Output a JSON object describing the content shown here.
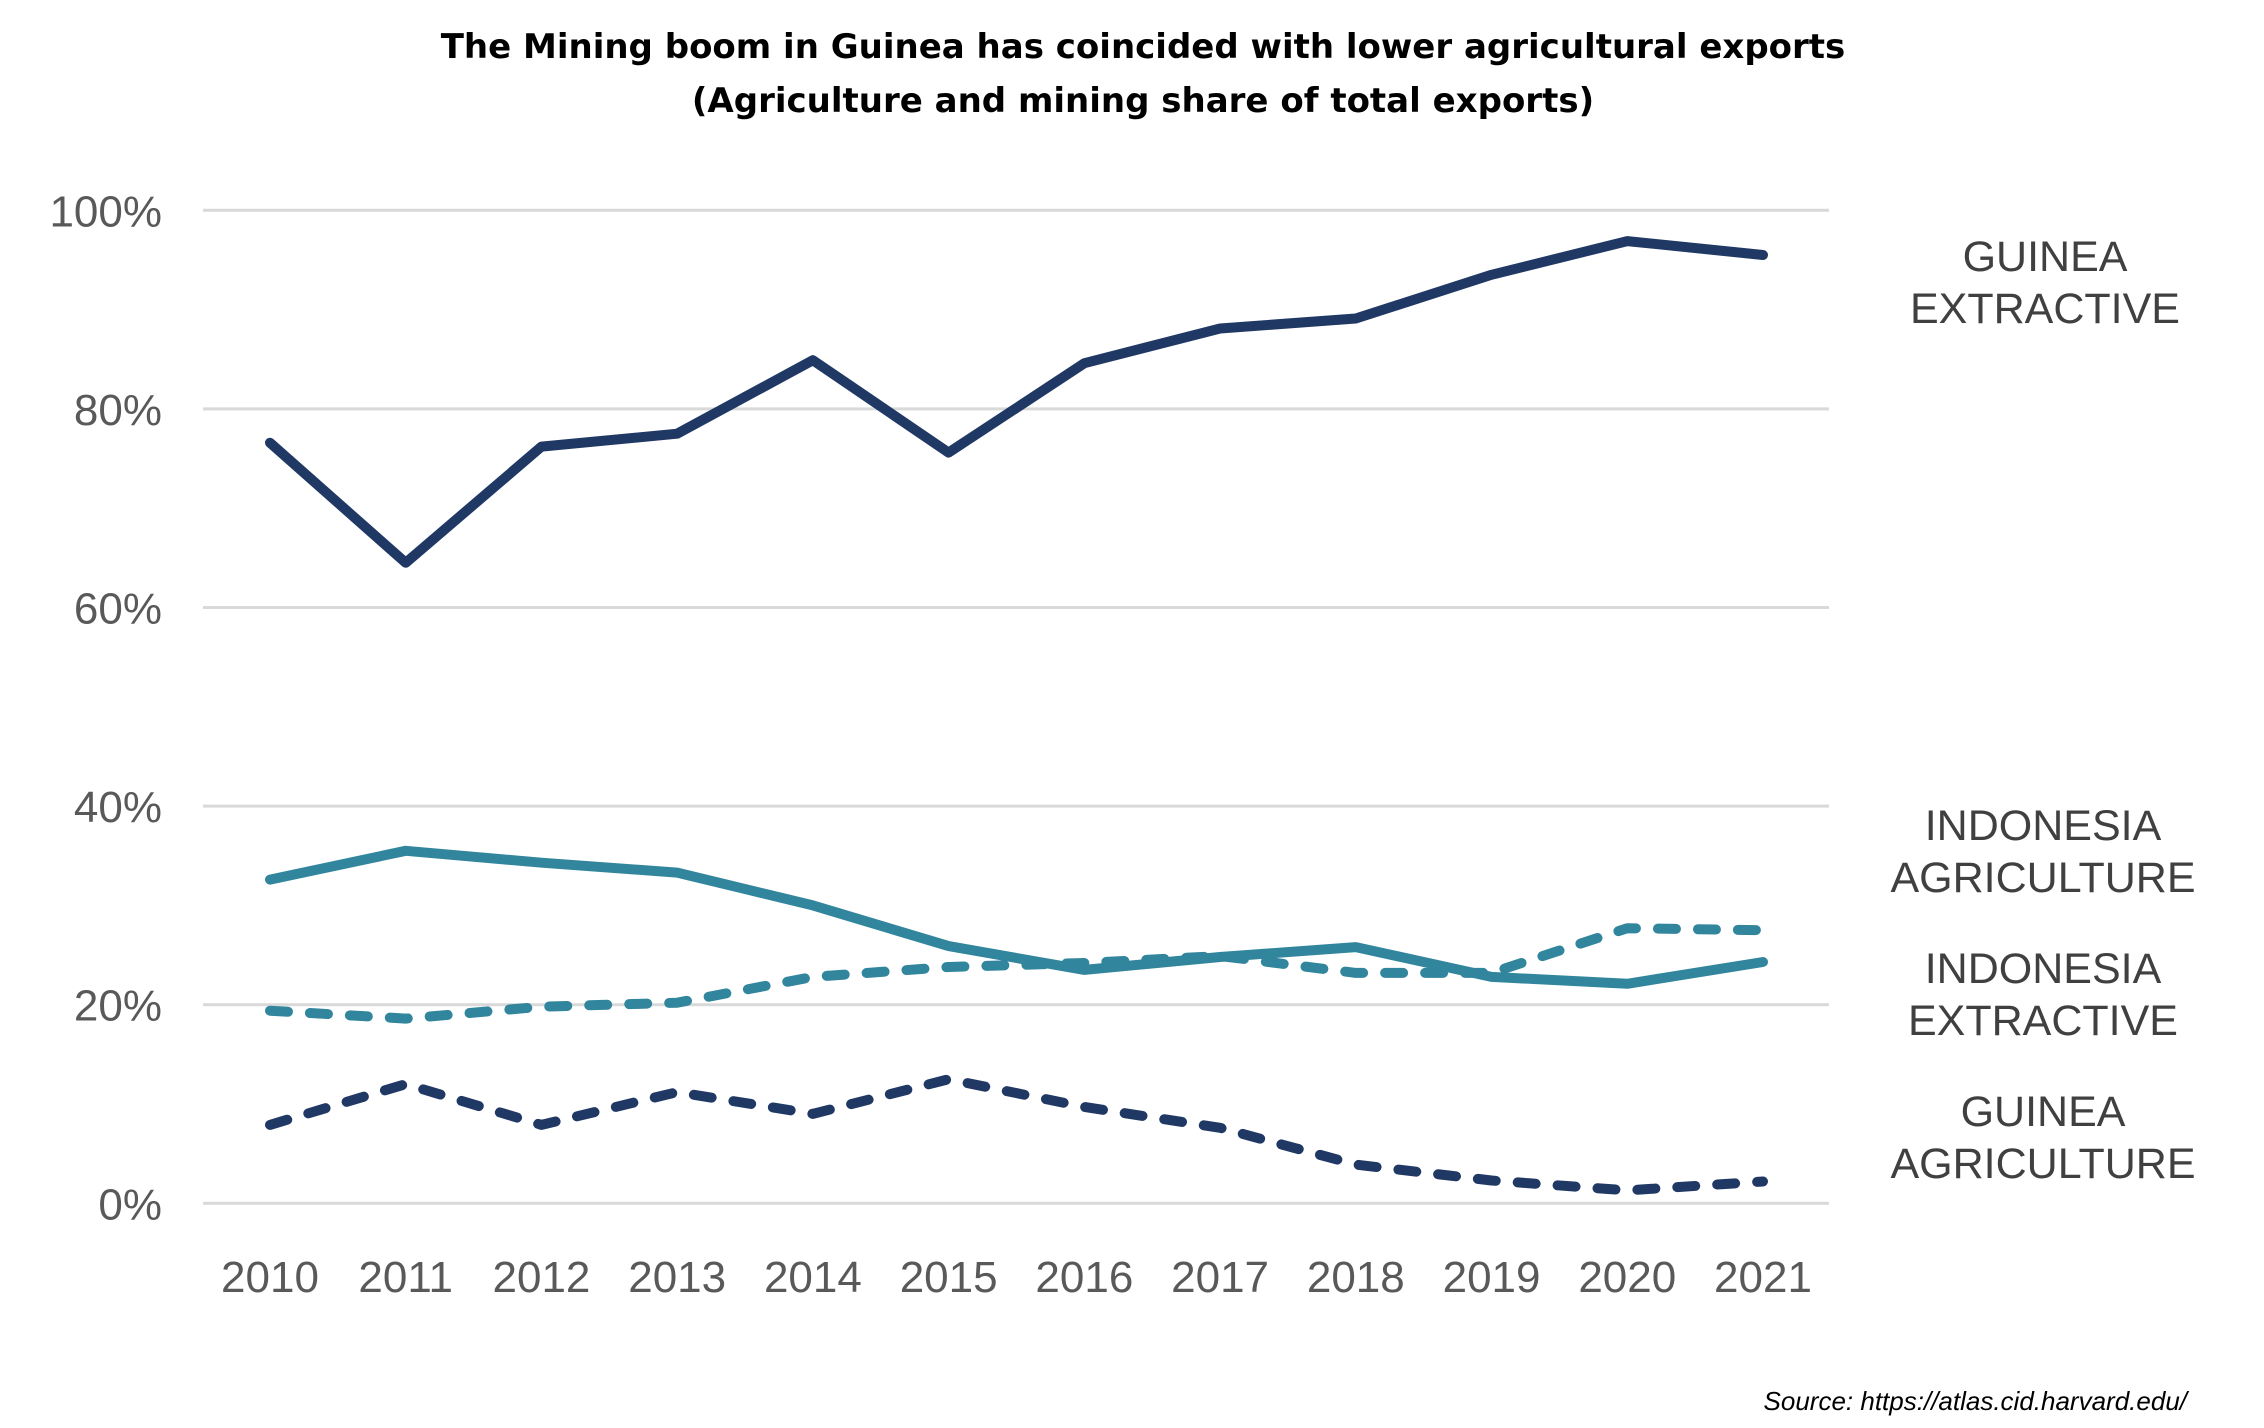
{
  "chart_data": {
    "type": "line",
    "title": "The Mining boom in Guinea has coincided with lower agricultural exports",
    "subtitle": "(Agriculture and mining share of total exports)",
    "xlabel": "",
    "ylabel": "",
    "x": [
      "2010",
      "2011",
      "2012",
      "2013",
      "2014",
      "2015",
      "2016",
      "2017",
      "2018",
      "2019",
      "2020",
      "2021"
    ],
    "ylim": [
      0,
      100
    ],
    "yticks": [
      0,
      20,
      40,
      60,
      80,
      100
    ],
    "ytick_labels": [
      "0%",
      "20%",
      "40%",
      "60%",
      "80%",
      "100%"
    ],
    "grid": true,
    "legend": "direct labels at right",
    "series": [
      {
        "name": "GUINEA EXTRACTIVE",
        "label_lines": [
          "GUINEA",
          "EXTRACTIVE"
        ],
        "color": "#203864",
        "dash": "solid",
        "values": [
          76.6,
          64.5,
          76.2,
          77.5,
          84.9,
          75.6,
          84.6,
          88.1,
          89.1,
          93.5,
          96.9,
          95.5
        ]
      },
      {
        "name": "INDONESIA AGRICULTURE",
        "label_lines": [
          "INDONESIA",
          "AGRICULTURE"
        ],
        "color": "#31859C",
        "dash": "solid",
        "values": [
          32.6,
          35.5,
          34.3,
          33.3,
          30.0,
          25.9,
          23.5,
          24.8,
          25.8,
          22.8,
          22.1,
          24.3
        ]
      },
      {
        "name": "INDONESIA EXTRACTIVE",
        "label_lines": [
          "INDONESIA",
          "EXTRACTIVE"
        ],
        "color": "#31859C",
        "dash": "dashed",
        "values": [
          19.4,
          18.6,
          19.8,
          20.2,
          22.8,
          23.8,
          24.2,
          24.9,
          23.2,
          23.2,
          27.7,
          27.5
        ]
      },
      {
        "name": "GUINEA AGRICULTURE",
        "label_lines": [
          "GUINEA",
          "AGRICULTURE"
        ],
        "color": "#203864",
        "dash": "dashed",
        "values": [
          7.9,
          12.0,
          7.9,
          11.2,
          9.0,
          12.5,
          9.7,
          7.6,
          3.9,
          2.3,
          1.3,
          2.2
        ]
      }
    ],
    "source": "Source: https://atlas.cid.harvard.edu/"
  }
}
